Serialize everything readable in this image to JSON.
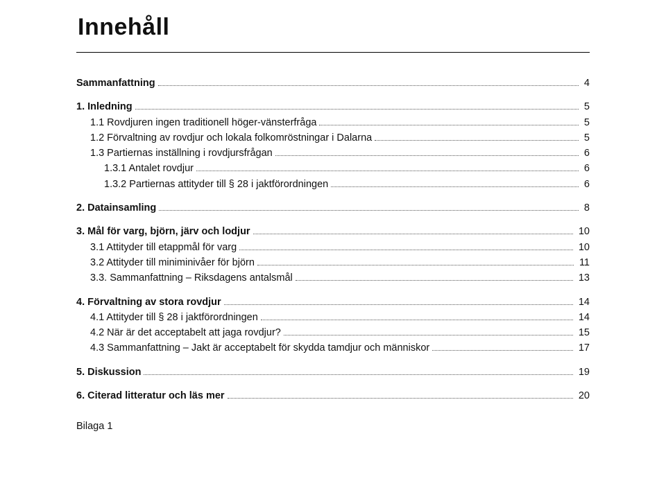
{
  "title": "Innehåll",
  "toc": [
    {
      "level": 0,
      "label": "Sammanfattning",
      "page": "4"
    },
    {
      "level": 0,
      "label": "1. Inledning",
      "page": "5"
    },
    {
      "level": 1,
      "label": "1.1 Rovdjuren ingen traditionell höger-vänsterfråga",
      "page": "5"
    },
    {
      "level": 1,
      "label": "1.2 Förvaltning av rovdjur och lokala folkomröstningar i Dalarna",
      "page": "5"
    },
    {
      "level": 1,
      "label": "1.3 Partiernas inställning i rovdjursfrågan",
      "page": "6"
    },
    {
      "level": 2,
      "label": "1.3.1 Antalet rovdjur",
      "page": "6"
    },
    {
      "level": 2,
      "label": "1.3.2 Partiernas attityder till § 28 i jaktförordningen",
      "page": "6"
    },
    {
      "level": 0,
      "label": "2. Datainsamling",
      "page": "8"
    },
    {
      "level": 0,
      "label": "3. Mål för varg, björn, järv och lodjur",
      "page": "10"
    },
    {
      "level": 1,
      "label": "3.1 Attityder till etappmål för varg",
      "page": "10"
    },
    {
      "level": 1,
      "label": "3.2 Attityder till miniminivåer för björn",
      "page": "11"
    },
    {
      "level": 1,
      "label": "3.3. Sammanfattning – Riksdagens antalsmål",
      "page": "13"
    },
    {
      "level": 0,
      "label": "4. Förvaltning av stora rovdjur",
      "page": "14"
    },
    {
      "level": 1,
      "label": "4.1 Attityder till § 28 i jaktförordningen",
      "page": "14"
    },
    {
      "level": 1,
      "label": "4.2 När är det acceptabelt att jaga rovdjur?",
      "page": "15"
    },
    {
      "level": 1,
      "label": "4.3 Sammanfattning – Jakt är acceptabelt för skydda tamdjur och människor",
      "page": "17"
    },
    {
      "level": 0,
      "label": "5. Diskussion",
      "page": "19"
    },
    {
      "level": 0,
      "label": "6. Citerad litteratur och läs mer",
      "page": "20"
    }
  ],
  "appendix": "Bilaga 1"
}
